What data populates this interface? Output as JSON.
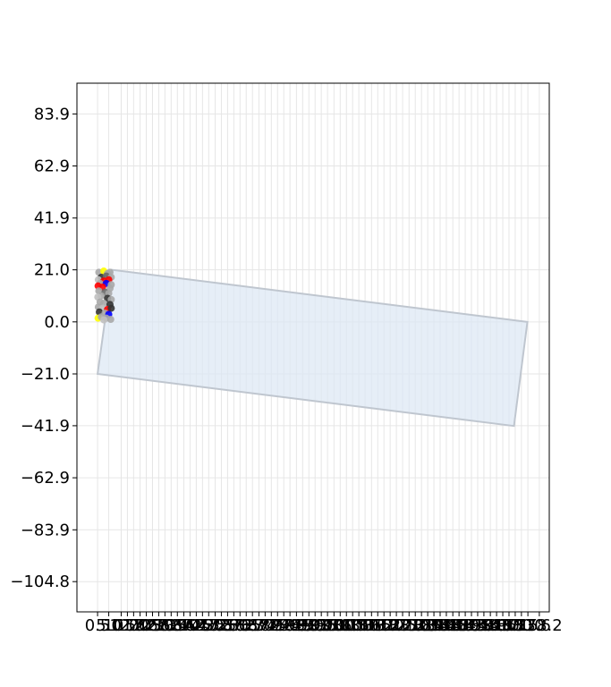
{
  "chart_data": {
    "type": "scatter",
    "title": "",
    "xlabel": "",
    "ylabel": "",
    "grid": true,
    "xlim": [
      -7.8,
      182.2
    ],
    "ylim": [
      -117.0,
      96.3
    ],
    "x_tick_labels": [
      "0.5",
      "5.0",
      "10.0",
      "12.5",
      "15.0",
      "17.6",
      "20.1",
      "22.6",
      "25.1",
      "27.6",
      "30.1",
      "32.6",
      "35.2",
      "37.7",
      "40.2",
      "42.7",
      "45.2",
      "47.8",
      "50.3",
      "52.8",
      "55.3",
      "57.8",
      "60.3",
      "62.8",
      "65.4",
      "67.9",
      "70.4",
      "72.9",
      "75.4",
      "77.9",
      "80.5",
      "83.0",
      "85.5",
      "88.0",
      "90.5",
      "93.0",
      "95.6",
      "98.1",
      "100.6",
      "103.1",
      "105.6",
      "108.1",
      "110.7",
      "113.2",
      "115.7",
      "118.2",
      "120.7",
      "123.2",
      "125.8",
      "128.3",
      "130.8",
      "133.3",
      "135.8",
      "138.3",
      "140.8",
      "143.4",
      "145.9",
      "148.4",
      "150.9",
      "153.4",
      "155.9",
      "158.5",
      "161.0",
      "163.5",
      "166.0",
      "168.5",
      "171.0",
      "173.6",
      "178.2"
    ],
    "x_tick_values": [
      0.5,
      5.0,
      10.0,
      12.5,
      15.0,
      17.6,
      20.1,
      22.6,
      25.1,
      27.6,
      30.1,
      32.6,
      35.2,
      37.7,
      40.2,
      42.7,
      45.2,
      47.8,
      50.3,
      52.8,
      55.3,
      57.8,
      60.3,
      62.8,
      65.4,
      67.9,
      70.4,
      72.9,
      75.4,
      77.9,
      80.5,
      83.0,
      85.5,
      88.0,
      90.5,
      93.0,
      95.6,
      98.1,
      100.6,
      103.1,
      105.6,
      108.1,
      110.7,
      113.2,
      115.7,
      118.2,
      120.7,
      123.2,
      125.8,
      128.3,
      130.8,
      133.3,
      135.8,
      138.3,
      140.8,
      143.4,
      145.9,
      148.4,
      150.9,
      153.4,
      155.9,
      158.5,
      161.0,
      163.5,
      166.0,
      168.5,
      171.0,
      173.6,
      178.2
    ],
    "y_tick_labels": [
      "83.9",
      "62.9",
      "41.9",
      "21.0",
      "0.0",
      "−21.0",
      "−41.9",
      "−62.9",
      "−83.9",
      "−104.8"
    ],
    "y_tick_values": [
      83.9,
      62.9,
      41.9,
      21.0,
      0.0,
      -21.0,
      -41.9,
      -62.9,
      -83.9,
      -104.8
    ],
    "region": {
      "fill": "#dbe7f4",
      "stroke": "#bfc6cf",
      "vertices": [
        [
          0.5,
          -21.0
        ],
        [
          3.4,
          0.0
        ],
        [
          6.2,
          21.0
        ],
        [
          173.4,
          0.0
        ],
        [
          168.0,
          -42.0
        ]
      ]
    },
    "points": [
      {
        "x": 1.0,
        "y": 20.0,
        "color": "#a9a9a9"
      },
      {
        "x": 3.0,
        "y": 20.5,
        "color": "#ffff00"
      },
      {
        "x": 4.5,
        "y": 19.5,
        "color": "#a9a9a9"
      },
      {
        "x": 5.5,
        "y": 20.0,
        "color": "#a9a9a9"
      },
      {
        "x": 2.0,
        "y": 18.0,
        "color": "#333333"
      },
      {
        "x": 4.0,
        "y": 18.5,
        "color": "#696969"
      },
      {
        "x": 6.0,
        "y": 18.0,
        "color": "#a9a9a9"
      },
      {
        "x": 0.8,
        "y": 17.0,
        "color": "#c0c0c0"
      },
      {
        "x": 5.0,
        "y": 17.0,
        "color": "#ff0000"
      },
      {
        "x": 3.0,
        "y": 16.5,
        "color": "#ff0000"
      },
      {
        "x": 1.5,
        "y": 15.5,
        "color": "#a9a9a9"
      },
      {
        "x": 4.0,
        "y": 15.5,
        "color": "#0000ff"
      },
      {
        "x": 6.0,
        "y": 15.0,
        "color": "#a9a9a9"
      },
      {
        "x": 0.7,
        "y": 14.5,
        "color": "#ff0000"
      },
      {
        "x": 2.5,
        "y": 14.0,
        "color": "#ff0000"
      },
      {
        "x": 5.5,
        "y": 13.5,
        "color": "#a9a9a9"
      },
      {
        "x": 1.0,
        "y": 12.5,
        "color": "#a9a9a9"
      },
      {
        "x": 3.5,
        "y": 12.0,
        "color": "#696969"
      },
      {
        "x": 5.0,
        "y": 11.5,
        "color": "#a9a9a9"
      },
      {
        "x": 2.0,
        "y": 10.5,
        "color": "#a9a9a9"
      },
      {
        "x": 0.6,
        "y": 10.0,
        "color": "#c0c0c0"
      },
      {
        "x": 4.5,
        "y": 9.5,
        "color": "#333333"
      },
      {
        "x": 6.0,
        "y": 9.0,
        "color": "#a9a9a9"
      },
      {
        "x": 1.5,
        "y": 8.0,
        "color": "#a9a9a9"
      },
      {
        "x": 3.0,
        "y": 7.5,
        "color": "#a9a9a9"
      },
      {
        "x": 5.5,
        "y": 7.0,
        "color": "#333333"
      },
      {
        "x": 0.8,
        "y": 6.0,
        "color": "#a9a9a9"
      },
      {
        "x": 2.5,
        "y": 5.5,
        "color": "#c0c0c0"
      },
      {
        "x": 4.5,
        "y": 5.0,
        "color": "#ff0000"
      },
      {
        "x": 6.0,
        "y": 5.5,
        "color": "#333333"
      },
      {
        "x": 1.2,
        "y": 4.0,
        "color": "#333333"
      },
      {
        "x": 3.5,
        "y": 3.5,
        "color": "#a9a9a9"
      },
      {
        "x": 5.0,
        "y": 3.0,
        "color": "#0000ff"
      },
      {
        "x": 0.7,
        "y": 1.5,
        "color": "#ffff00"
      },
      {
        "x": 2.0,
        "y": 2.0,
        "color": "#a9a9a9"
      },
      {
        "x": 4.0,
        "y": 1.5,
        "color": "#a9a9a9"
      },
      {
        "x": 5.8,
        "y": 1.0,
        "color": "#a9a9a9"
      },
      {
        "x": 3.0,
        "y": 0.8,
        "color": "#c0c0c0"
      }
    ]
  }
}
